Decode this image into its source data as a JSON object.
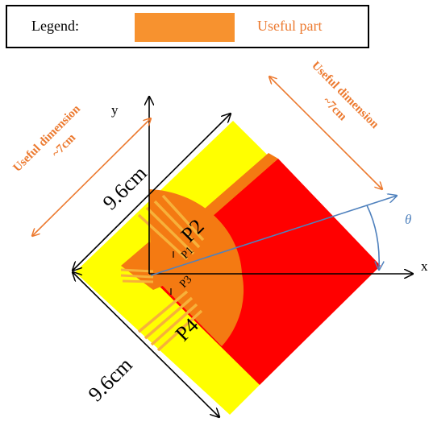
{
  "legend": {
    "title": "Legend:",
    "item_label": "Useful part"
  },
  "annotations": {
    "left_useful_line1": "Useful dimension",
    "left_useful_line2": "~7cm",
    "right_useful_line1": "Useful dimension",
    "right_useful_line2": "~7cm",
    "dim_top": "9.6cm",
    "dim_bottom": "9.6cm",
    "axis_x": "x",
    "axis_y": "y",
    "angle": "θ",
    "port_p1": "P1",
    "port_p2": "P2",
    "port_p3": "P3",
    "port_p4": "P4"
  },
  "colors": {
    "substrate": "#ffff00",
    "ground_plane": "#ff0000",
    "useful_part": "#f7922f",
    "sector": "#f47a12",
    "annotation": "#ec7a30",
    "angle_line": "#4f81bd"
  }
}
